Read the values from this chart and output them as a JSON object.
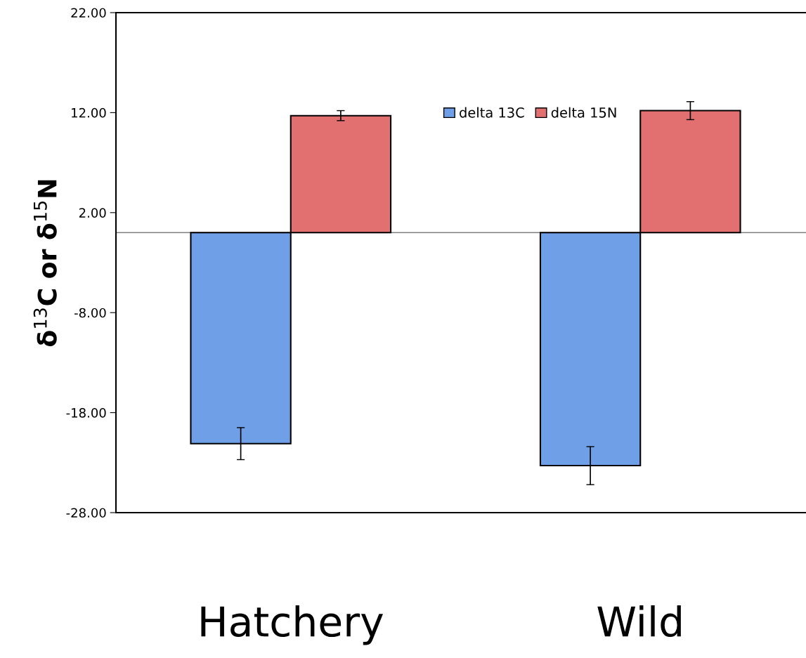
{
  "chart_data": {
    "type": "bar",
    "ylabel": "δ$^{13}$C or δ$^{15}$N",
    "categories": [
      "Hatchery",
      "Wild"
    ],
    "series": [
      {
        "name": "delta 13C",
        "color": "#6f9fe6",
        "values": [
          -21.1,
          -23.3
        ],
        "errors": [
          1.6,
          1.9
        ]
      },
      {
        "name": "delta 15N",
        "color": "#e27070",
        "values": [
          11.7,
          12.2
        ],
        "errors": [
          0.5,
          0.9
        ]
      }
    ],
    "ylim": [
      -28,
      22
    ],
    "yticks": [
      {
        "value": -28,
        "label": "-28.00"
      },
      {
        "value": -18,
        "label": "-18.00"
      },
      {
        "value": -8,
        "label": "-8.00"
      },
      {
        "value": 2,
        "label": "2.00"
      },
      {
        "value": 12,
        "label": "12.00"
      },
      {
        "value": 22,
        "label": "22.00"
      }
    ],
    "ref_lines": [
      {
        "axis": "y",
        "value": 0,
        "color": "#808080"
      }
    ],
    "legend": "top",
    "grid": false
  }
}
